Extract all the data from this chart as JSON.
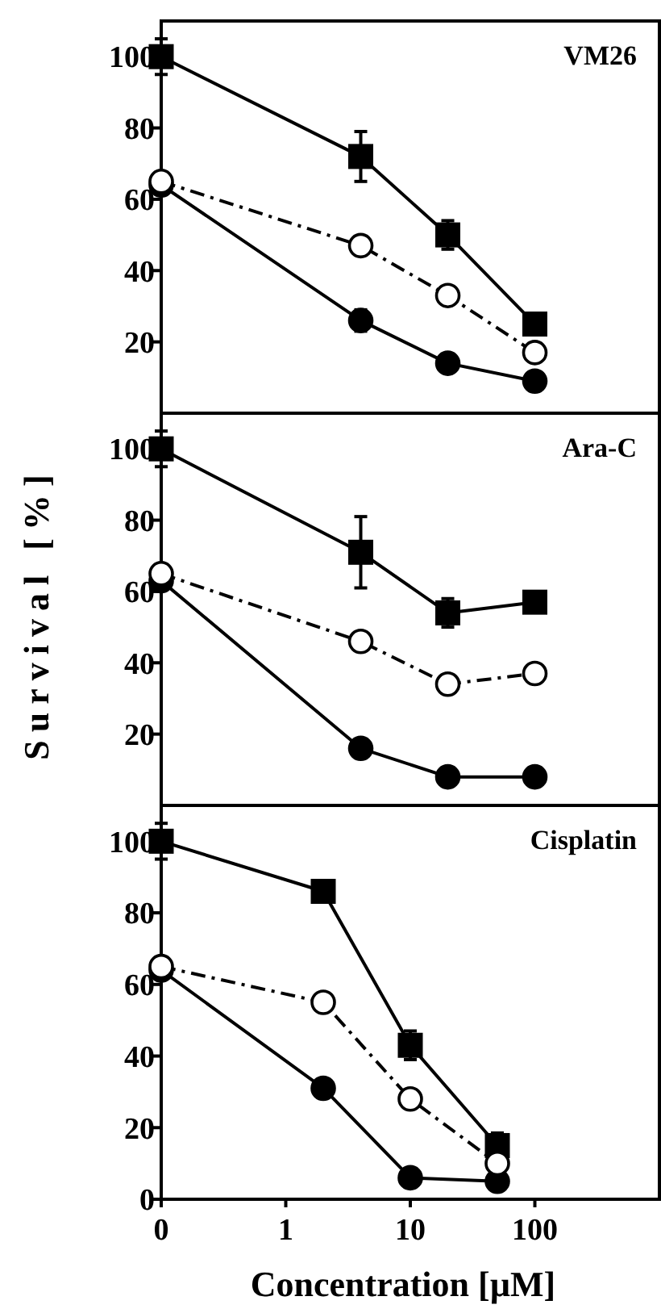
{
  "chart_data": [
    {
      "type": "line",
      "title": "VM26",
      "x": [
        0.1,
        4,
        20,
        100
      ],
      "xlim": [
        0.1,
        1000
      ],
      "ylim": [
        0,
        110
      ],
      "yticks": [
        20,
        40,
        60,
        80,
        100
      ],
      "log": "x",
      "tick_labels": "y",
      "grid": false,
      "series": [
        {
          "color": "#000000",
          "marker": "square",
          "line_style": "solid",
          "values": [
            100,
            72,
            50,
            25
          ],
          "errors": [
            5,
            7,
            4,
            null
          ]
        },
        {
          "color": "#000000",
          "marker": "circle",
          "line_style": "dashed",
          "values": [
            65,
            47,
            33,
            17
          ]
        },
        {
          "color": "#000000",
          "marker": "circle",
          "line_style": "solid",
          "values": [
            64,
            26,
            14,
            9
          ],
          "errors": [
            null,
            3,
            null,
            null
          ]
        }
      ]
    },
    {
      "type": "line",
      "title": "Ara-C",
      "ylabel": "Survival [%]",
      "x": [
        0.1,
        4,
        20,
        100
      ],
      "xlim": [
        0.1,
        1000
      ],
      "ylim": [
        0,
        110
      ],
      "yticks": [
        20,
        40,
        60,
        80,
        100
      ],
      "log": "x",
      "tick_labels": "y",
      "grid": false,
      "series": [
        {
          "color": "#000000",
          "marker": "square",
          "line_style": "solid",
          "values": [
            100,
            71,
            54,
            57
          ],
          "errors": [
            5,
            10,
            4,
            null
          ]
        },
        {
          "color": "#000000",
          "marker": "circle",
          "line_style": "dashed",
          "values": [
            65,
            46,
            34,
            37
          ]
        },
        {
          "color": "#000000",
          "marker": "circle",
          "line_style": "solid",
          "values": [
            63,
            16,
            8,
            8
          ]
        }
      ]
    },
    {
      "type": "line",
      "title": "Cisplatin",
      "xlabel": "Concentration [µM]",
      "x": [
        0.1,
        2,
        10,
        50
      ],
      "xlim": [
        0.1,
        1000
      ],
      "xticks": [
        {
          "value": 0.1,
          "label": "0"
        },
        1,
        10,
        100
      ],
      "ylim": [
        0,
        110
      ],
      "yticks": [
        0,
        20,
        40,
        60,
        80,
        100
      ],
      "log": "x",
      "grid": false,
      "series": [
        {
          "color": "#000000",
          "marker": "square",
          "line_style": "solid",
          "values": [
            100,
            86,
            43,
            15
          ],
          "errors": [
            5,
            null,
            4,
            3.5
          ]
        },
        {
          "color": "#000000",
          "marker": "circle",
          "line_style": "dashed",
          "values": [
            65,
            55,
            28,
            10
          ]
        },
        {
          "color": "#000000",
          "marker": "circle",
          "line_style": "solid",
          "values": [
            64,
            31,
            6,
            5
          ]
        }
      ]
    }
  ]
}
